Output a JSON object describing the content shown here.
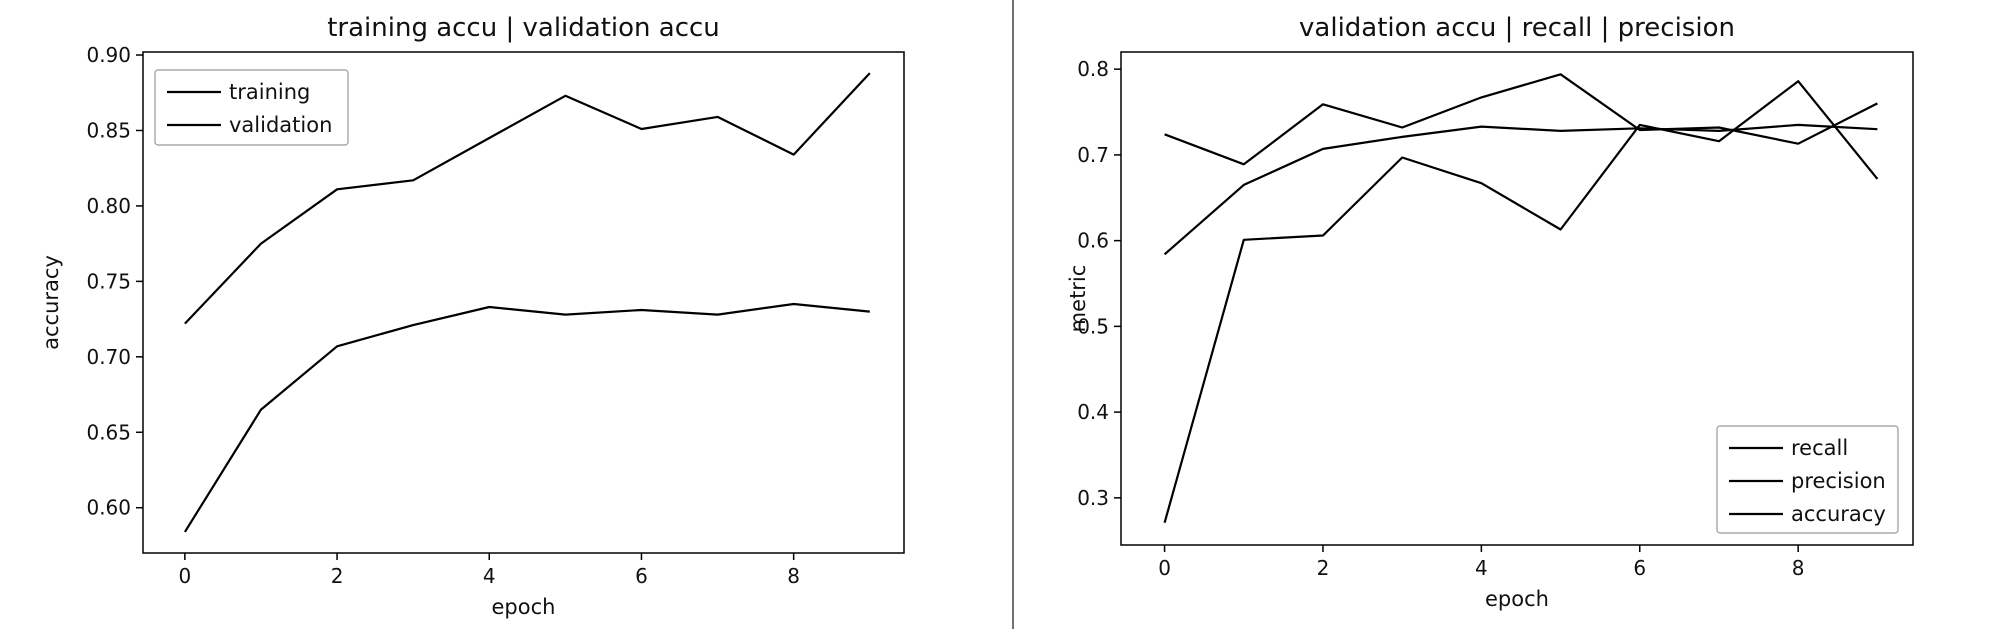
{
  "chart_data": [
    {
      "type": "line",
      "title": "training accu | validation accu",
      "xlabel": "epoch",
      "ylabel": "accuracy",
      "x": [
        0,
        1,
        2,
        3,
        4,
        5,
        6,
        7,
        8,
        9
      ],
      "xlim": [
        -0.55,
        9.45
      ],
      "ylim": [
        0.57,
        0.902
      ],
      "xticks": [
        "0",
        "2",
        "4",
        "6",
        "8"
      ],
      "yticks": [
        "0.60",
        "0.65",
        "0.70",
        "0.75",
        "0.80",
        "0.85",
        "0.90"
      ],
      "grid": false,
      "legend_position": "upper-left",
      "series": [
        {
          "name": "training",
          "values": [
            0.722,
            0.775,
            0.811,
            0.817,
            0.845,
            0.873,
            0.851,
            0.859,
            0.834,
            0.888
          ],
          "color": "#000000"
        },
        {
          "name": "validation",
          "values": [
            0.584,
            0.665,
            0.707,
            0.721,
            0.733,
            0.728,
            0.731,
            0.728,
            0.735,
            0.73
          ],
          "color": "#000000"
        }
      ]
    },
    {
      "type": "line",
      "title": "validation accu | recall | precision",
      "xlabel": "epoch",
      "ylabel": "metric",
      "x": [
        0,
        1,
        2,
        3,
        4,
        5,
        6,
        7,
        8,
        9
      ],
      "xlim": [
        -0.55,
        9.45
      ],
      "ylim": [
        0.245,
        0.82
      ],
      "xticks": [
        "0",
        "2",
        "4",
        "6",
        "8"
      ],
      "yticks": [
        "0.3",
        "0.4",
        "0.5",
        "0.6",
        "0.7",
        "0.8"
      ],
      "grid": false,
      "legend_position": "lower-right",
      "series": [
        {
          "name": "recall",
          "values": [
            0.271,
            0.601,
            0.606,
            0.697,
            0.667,
            0.613,
            0.735,
            0.716,
            0.786,
            0.672
          ],
          "color": "#000000"
        },
        {
          "name": "precision",
          "values": [
            0.724,
            0.689,
            0.759,
            0.732,
            0.767,
            0.794,
            0.729,
            0.732,
            0.713,
            0.76
          ],
          "color": "#000000"
        },
        {
          "name": "accuracy",
          "values": [
            0.584,
            0.665,
            0.707,
            0.721,
            0.733,
            0.728,
            0.731,
            0.728,
            0.735,
            0.73
          ],
          "color": "#000000"
        }
      ]
    }
  ]
}
